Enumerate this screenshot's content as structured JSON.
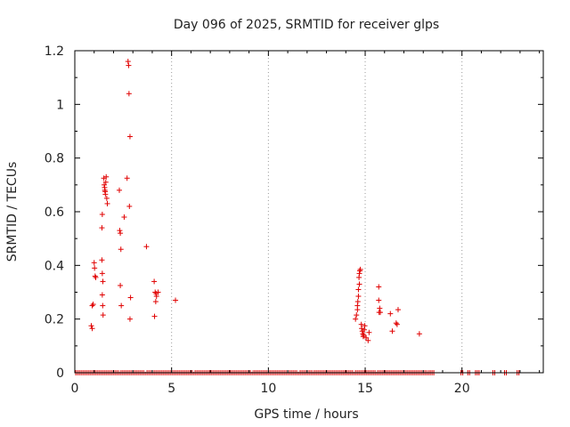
{
  "chart_data": {
    "type": "scatter",
    "title": "Day 096 of 2025, SRMTID for receiver glps",
    "xlabel": "GPS time / hours",
    "ylabel": "SRMTID / TECUs",
    "xlim": [
      0,
      24.2
    ],
    "ylim": [
      0,
      1.2
    ],
    "x_ticks": [
      0,
      5,
      10,
      15,
      20
    ],
    "x_tick_labels": [
      "0",
      "5",
      "10",
      "15",
      "20"
    ],
    "y_ticks": [
      0,
      0.2,
      0.4,
      0.6,
      0.8,
      1,
      1.2
    ],
    "y_tick_labels": [
      "0",
      "0.2",
      "0.4",
      "0.6",
      "0.8",
      "1",
      "1.2"
    ],
    "grid": true,
    "marker": "plus",
    "series": [
      {
        "name": "SRMTID",
        "color": "#e00000",
        "points": [
          [
            0.9,
            0.25
          ],
          [
            0.95,
            0.255
          ],
          [
            0.85,
            0.175
          ],
          [
            0.9,
            0.165
          ],
          [
            1.0,
            0.41
          ],
          [
            1.02,
            0.39
          ],
          [
            1.05,
            0.36
          ],
          [
            1.08,
            0.355
          ],
          [
            1.4,
            0.42
          ],
          [
            1.42,
            0.37
          ],
          [
            1.45,
            0.34
          ],
          [
            1.42,
            0.29
          ],
          [
            1.44,
            0.25
          ],
          [
            1.46,
            0.215
          ],
          [
            1.4,
            0.54
          ],
          [
            1.42,
            0.59
          ],
          [
            1.5,
            0.725
          ],
          [
            1.52,
            0.7
          ],
          [
            1.54,
            0.69
          ],
          [
            1.55,
            0.68
          ],
          [
            1.57,
            0.675
          ],
          [
            1.58,
            0.665
          ],
          [
            1.6,
            0.71
          ],
          [
            1.62,
            0.73
          ],
          [
            1.65,
            0.65
          ],
          [
            1.68,
            0.63
          ],
          [
            2.3,
            0.68
          ],
          [
            2.32,
            0.53
          ],
          [
            2.35,
            0.52
          ],
          [
            2.38,
            0.46
          ],
          [
            2.35,
            0.325
          ],
          [
            2.4,
            0.25
          ],
          [
            2.55,
            0.58
          ],
          [
            2.7,
            0.725
          ],
          [
            2.75,
            1.16
          ],
          [
            2.78,
            1.145
          ],
          [
            2.8,
            1.04
          ],
          [
            2.85,
            0.88
          ],
          [
            2.82,
            0.62
          ],
          [
            2.88,
            0.28
          ],
          [
            2.85,
            0.2
          ],
          [
            3.7,
            0.47
          ],
          [
            4.1,
            0.34
          ],
          [
            4.15,
            0.3
          ],
          [
            4.2,
            0.295
          ],
          [
            4.22,
            0.285
          ],
          [
            4.18,
            0.265
          ],
          [
            4.12,
            0.21
          ],
          [
            4.3,
            0.3
          ],
          [
            5.2,
            0.27
          ],
          [
            14.5,
            0.2
          ],
          [
            14.55,
            0.215
          ],
          [
            14.6,
            0.235
          ],
          [
            14.6,
            0.25
          ],
          [
            14.62,
            0.265
          ],
          [
            14.65,
            0.285
          ],
          [
            14.65,
            0.31
          ],
          [
            14.7,
            0.33
          ],
          [
            14.68,
            0.355
          ],
          [
            14.7,
            0.37
          ],
          [
            14.72,
            0.38
          ],
          [
            14.75,
            0.385
          ],
          [
            14.8,
            0.18
          ],
          [
            14.82,
            0.165
          ],
          [
            14.85,
            0.155
          ],
          [
            14.88,
            0.145
          ],
          [
            14.9,
            0.135
          ],
          [
            14.92,
            0.14
          ],
          [
            14.95,
            0.16
          ],
          [
            14.98,
            0.175
          ],
          [
            15.05,
            0.13
          ],
          [
            15.15,
            0.12
          ],
          [
            15.2,
            0.15
          ],
          [
            15.7,
            0.32
          ],
          [
            15.7,
            0.27
          ],
          [
            15.75,
            0.24
          ],
          [
            15.72,
            0.225
          ],
          [
            15.78,
            0.225
          ],
          [
            16.3,
            0.22
          ],
          [
            16.4,
            0.155
          ],
          [
            16.6,
            0.185
          ],
          [
            16.65,
            0.18
          ],
          [
            16.7,
            0.235
          ],
          [
            17.8,
            0.145
          ]
        ]
      }
    ],
    "zero_band_ranges": [
      [
        0.05,
        18.6
      ],
      [
        19.95,
        20.05
      ],
      [
        20.3,
        20.45
      ],
      [
        20.7,
        20.9
      ],
      [
        21.6,
        21.75
      ],
      [
        22.2,
        22.35
      ],
      [
        22.85,
        22.95
      ]
    ],
    "zero_band_gaps": [
      [
        2.28,
        2.34
      ],
      [
        3.62,
        3.67
      ],
      [
        6.12,
        6.16
      ],
      [
        9.12,
        9.16
      ],
      [
        11.52,
        11.56
      ],
      [
        12.3,
        12.33
      ],
      [
        14.4,
        14.46
      ],
      [
        15.55,
        15.6
      ],
      [
        18.2,
        18.25
      ]
    ]
  }
}
